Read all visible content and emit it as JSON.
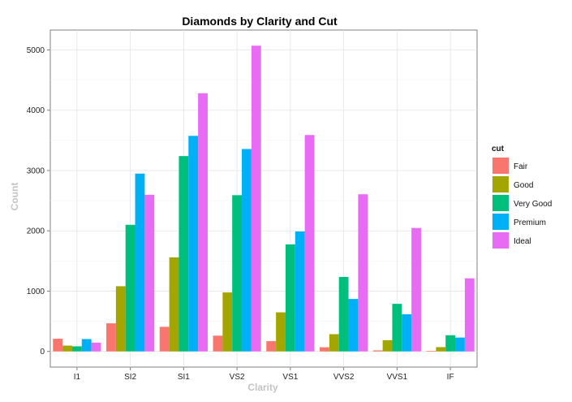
{
  "chart_data": {
    "type": "bar",
    "title": "Diamonds by Clarity and Cut",
    "xlabel": "Clarity",
    "ylabel": "Count",
    "categories": [
      "I1",
      "SI2",
      "SI1",
      "VS2",
      "VS1",
      "VVS2",
      "VVS1",
      "IF"
    ],
    "ylim": [
      -260,
      5330
    ],
    "yticks": [
      0,
      1000,
      2000,
      3000,
      4000,
      5000
    ],
    "ytick_labels": [
      "0",
      "1000",
      "2000",
      "3000",
      "4000",
      "5000"
    ],
    "grid": true,
    "legend": {
      "title": "cut",
      "placement": "right"
    },
    "series": [
      {
        "name": "Fair",
        "color": "#F8766D",
        "values": [
          210,
          466,
          408,
          261,
          170,
          69,
          17,
          9
        ]
      },
      {
        "name": "Good",
        "color": "#A3A500",
        "values": [
          96,
          1081,
          1560,
          978,
          648,
          286,
          186,
          71
        ]
      },
      {
        "name": "Very Good",
        "color": "#00BF7D",
        "values": [
          84,
          2100,
          3240,
          2591,
          1775,
          1235,
          789,
          268
        ]
      },
      {
        "name": "Premium",
        "color": "#00B0F6",
        "values": [
          205,
          2949,
          3575,
          3357,
          1989,
          870,
          616,
          230
        ]
      },
      {
        "name": "Ideal",
        "color": "#E76BF3",
        "values": [
          146,
          2598,
          4282,
          5071,
          3589,
          2606,
          2047,
          1212
        ]
      }
    ]
  }
}
